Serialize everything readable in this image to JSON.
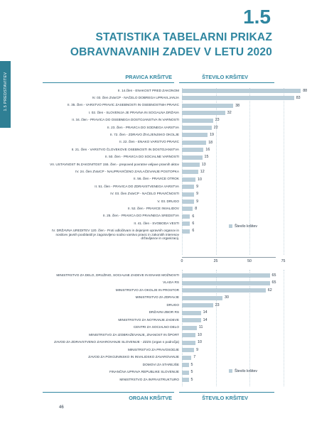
{
  "sidebar": {
    "label": "1.5 PREDSTAVITEV"
  },
  "header": {
    "section_number": "1.5",
    "title_line1": "STATISTIKA TABELARNI PRIKAZ",
    "title_line2": "OBRAVNAVANIH ZADEV V LETU 2020"
  },
  "colors": {
    "accent": "#2f86a0",
    "sidebar": "#2f7f94",
    "bar": "#b9cdd8"
  },
  "page_number": "46",
  "chart_data": [
    {
      "type": "bar",
      "orientation": "horizontal",
      "header_left": "PRAVICA KRŠITVE",
      "header_right": "ŠTEVILO KRŠITEV",
      "xlim": [
        0,
        88
      ],
      "grid": true,
      "legend_position": "bottom-right",
      "series": [
        {
          "name": "Število kršitev",
          "values": [
            88,
            83,
            38,
            32,
            23,
            22,
            19,
            18,
            16,
            15,
            13,
            12,
            10,
            9,
            9,
            9,
            8,
            6,
            6,
            6
          ]
        }
      ],
      "categories": [
        [
          "II. 14.člen - ENAKOST PRED ZAKONOM"
        ],
        [
          "IV. 03. člen ZVarCP - NAČELO DOBREGA UPRAVLJANJA"
        ],
        [
          "II. 35. člen - VARSTVO PRAVIC ZASEBNOSTI IN OSEBNOSTNIH PRAVIC"
        ],
        [
          "I. 02. člen - SLOVENIJA JE PRAVNA IN SOCIALNA DRŽAVA"
        ],
        [
          "II. 34. člen - PRAVICA DO OSEBNEGA DOSTOJANSTVA IN VARNOSTI"
        ],
        [
          "II. 23. člen - PRAVICA DO SODNEGA VARSTVA"
        ],
        [
          "II. 72. člen - ZDRAVO ŽIVLJENJSKO OKOLJE"
        ],
        [
          "II. 22. člen - ENAKO VARSTVO PRAVIC"
        ],
        [
          "II. 21. člen - VARSTVO ČLOVEKOVE OSEBNOSTI IN DOSTOJANSTVA"
        ],
        [
          "II. 50. člen - PRAVICA DO SOCIALNE VARNOSTI"
        ],
        [
          "VII. USTAVNOST IN ZAKONITOST 155. člen - prepoved povratne veljave pravnih aktov"
        ],
        [
          "IV. 24. člen ZVarCP - NAUPRAVIČENO ZAVLAČEVANJE POSTOPKA"
        ],
        [
          "II. 56. člen - PRAVICE OTROK"
        ],
        [
          "II. 51. člen - PRAVICA DO ZDRAVSTVENEGA VARSTVA"
        ],
        [
          "IV. 03. člen ZVarCP - NAČELO PRAVIČNOSTI"
        ],
        [
          "V. 03. DRUGO"
        ],
        [
          "II. 52. člen - PRAVICE INVALIDOV"
        ],
        [
          "II. 25. člen - PRAVICA DO PRAVNEGA SREDSTVA"
        ],
        [
          "II. 41. člen - SVOBODA VESTI"
        ],
        [
          "IV. DRŽAVNA UREDITEV 120. člen - Proti odločitvam in dejanjem upravnih organov in",
          "nosilcev javnih pooblastil je zagotovljeno sodno varstvo pravic in zakonitih interesov",
          "državljanov in organizacij."
        ]
      ],
      "x_ticks": [
        "0",
        "25",
        "50",
        "75"
      ]
    },
    {
      "type": "bar",
      "orientation": "horizontal",
      "header_left": "ORGAN KRŠITVE",
      "header_right": "ŠTEVILO KRŠITEV",
      "xlim": [
        0,
        68
      ],
      "grid": true,
      "legend_position": "bottom-right",
      "series": [
        {
          "name": "Število kršitev",
          "values": [
            65,
            65,
            62,
            30,
            23,
            14,
            14,
            11,
            10,
            10,
            9,
            7,
            5,
            5,
            5
          ]
        }
      ],
      "categories": [
        [
          "MINISTRSTVO ZA DELO, DRUŽINO, SOCIALNE ZADEVE IN ENAKE MOŽNOSTI"
        ],
        [
          "VLADA RS"
        ],
        [
          "MINISTRSTVO ZA OKOLJE IN PROSTOR"
        ],
        [
          "MINISTRSTVO ZA ZDRAVJE"
        ],
        [
          "DRUGO"
        ],
        [
          "DRŽAVNI ZBOR RS"
        ],
        [
          "MINISTRSTVO ZA NOTRANJE ZADEVE"
        ],
        [
          "CENTRI ZA SOCIALNO DELO"
        ],
        [
          "MINISTRSTVO ZA IZOBRAŽEVANJE, ZNANOST IN ŠPORT"
        ],
        [
          "ZAVOD ZA ZDRAVSTVENO ZAVAROVANJE SLOVENIJE - ZZZS (organ s področja)"
        ],
        [
          "MINISTRSTVO ZA PRAVOSODJE"
        ],
        [
          "ZAVOD ZA POKOJNINSKO IN INVALIDSKO ZAVAROVANJE"
        ],
        [
          "DOMOVI ZA STAREJŠE"
        ],
        [
          "FINANČNA UPRAVA REPUBLIKE SLOVENIJE"
        ],
        [
          "MINISTRSTVO ZA INFRASTRUKTURO"
        ]
      ]
    }
  ]
}
